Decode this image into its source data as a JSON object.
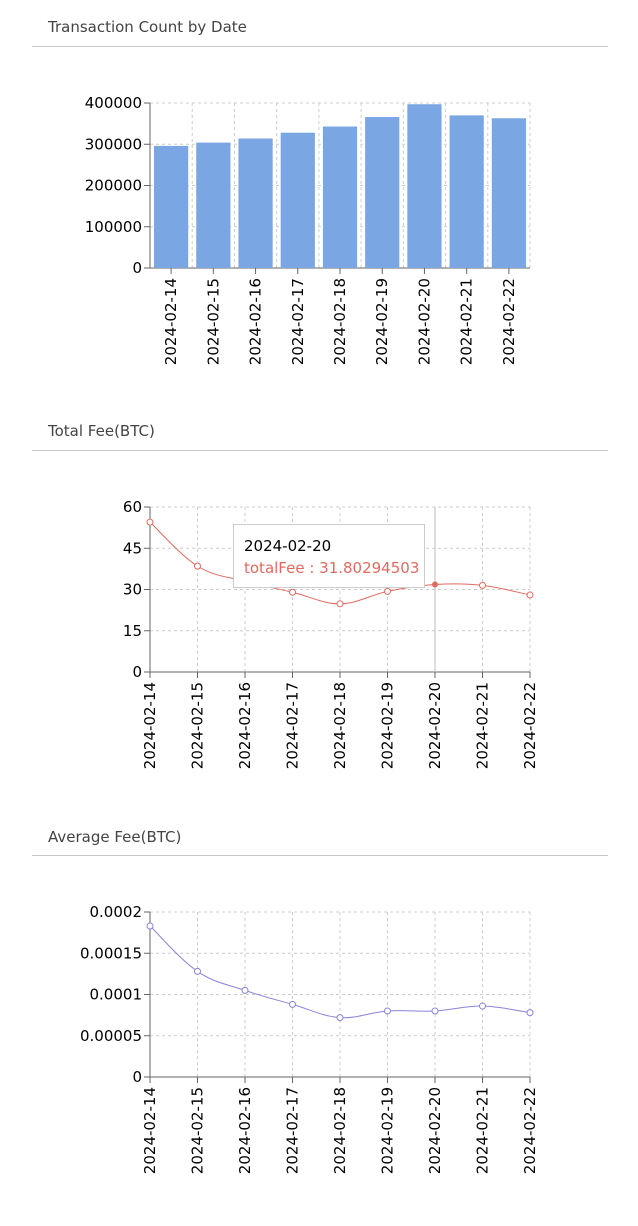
{
  "sections": [
    {
      "title": "Transaction Count by Date"
    },
    {
      "title": "Total Fee(BTC)"
    },
    {
      "title": "Average Fee(BTC)"
    }
  ],
  "chart_data": [
    {
      "type": "bar",
      "categories": [
        "2024-02-14",
        "2024-02-15",
        "2024-02-16",
        "2024-02-17",
        "2024-02-18",
        "2024-02-19",
        "2024-02-20",
        "2024-02-21",
        "2024-02-22"
      ],
      "values": [
        296000,
        304000,
        314000,
        328000,
        343000,
        366000,
        397000,
        370000,
        363000
      ],
      "yticks": [
        "0",
        "100000",
        "200000",
        "300000",
        "400000"
      ],
      "ylim": [
        0,
        400000
      ],
      "color": "#7aa6e3",
      "grid": true
    },
    {
      "type": "line",
      "x": [
        "2024-02-14",
        "2024-02-15",
        "2024-02-16",
        "2024-02-17",
        "2024-02-18",
        "2024-02-19",
        "2024-02-20",
        "2024-02-21",
        "2024-02-22"
      ],
      "values": [
        54.5,
        38.5,
        33.0,
        29.0,
        24.8,
        29.3,
        31.80294503,
        31.5,
        28.0
      ],
      "yticks": [
        "0",
        "15",
        "30",
        "45",
        "60"
      ],
      "ylim": [
        0,
        60
      ],
      "color": "#e06a60",
      "grid": true,
      "tooltip": {
        "label": "2024-02-20",
        "text": "totalFee : 31.80294503",
        "index": 6
      }
    },
    {
      "type": "line",
      "x": [
        "2024-02-14",
        "2024-02-15",
        "2024-02-16",
        "2024-02-17",
        "2024-02-18",
        "2024-02-19",
        "2024-02-20",
        "2024-02-21",
        "2024-02-22"
      ],
      "values": [
        0.000183,
        0.000128,
        0.000105,
        8.8e-05,
        7.2e-05,
        8e-05,
        8e-05,
        8.6e-05,
        7.8e-05
      ],
      "yticks": [
        "0",
        "0.00005",
        "0.0001",
        "0.00015",
        "0.0002"
      ],
      "ylim": [
        0,
        0.0002
      ],
      "color": "#8884d8",
      "grid": true
    }
  ]
}
